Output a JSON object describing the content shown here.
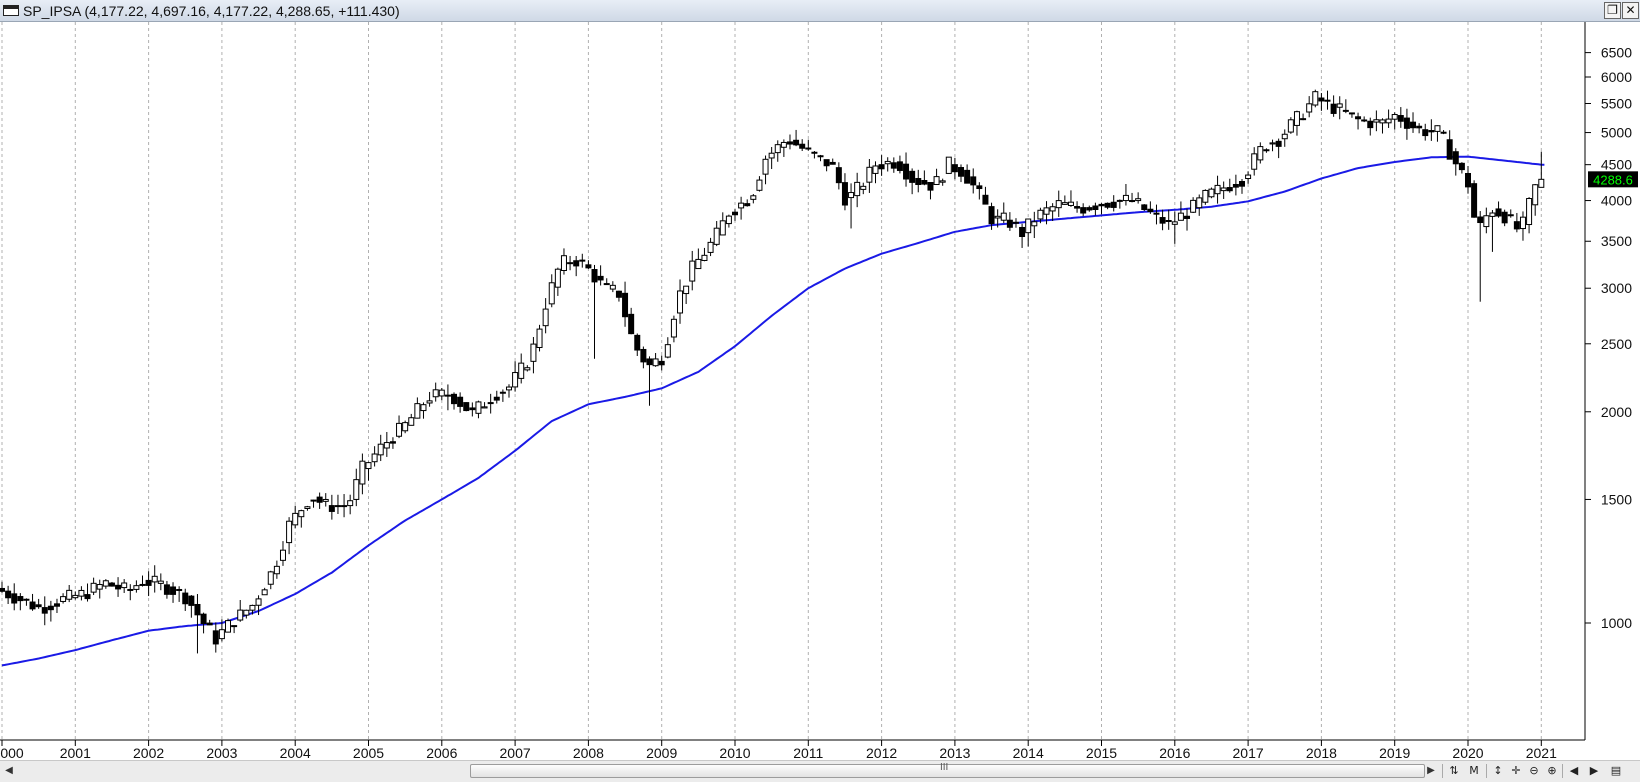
{
  "window": {
    "title": "SP_IPSA (4,177.22, 4,697.16, 4,177.22, 4,288.65, +111.430)",
    "restore_icon": "restore-icon",
    "close_icon": "close-icon"
  },
  "scrollbar": {
    "grip": "III"
  },
  "toolbar": {
    "items": [
      "scale-toggle-icon",
      "M",
      "pan-vertical-icon",
      "crosshair-icon",
      "zoom-out-icon",
      "zoom-in-icon",
      "step-left-icon",
      "step-right-icon",
      "panel-icon"
    ],
    "m_label": "M"
  },
  "chart_data": {
    "type": "candlestick",
    "symbol": "SP_IPSA",
    "interval": "monthly",
    "y_scale": "log",
    "ylim": [
      800,
      7000
    ],
    "y_ticks": [
      1000,
      1500,
      2000,
      2500,
      3000,
      3500,
      4000,
      4500,
      5000,
      5500,
      6000,
      6500
    ],
    "x_tick_labels": [
      "000",
      "2001",
      "2002",
      "2003",
      "2004",
      "2005",
      "2006",
      "2007",
      "2008",
      "2009",
      "2010",
      "2011",
      "2012",
      "2013",
      "2014",
      "2015",
      "2016",
      "2017",
      "2018",
      "2019",
      "2020",
      "2021"
    ],
    "last_value_label": "4288.6",
    "grid": "vertical-dashed",
    "last_bar": {
      "open": 4177.22,
      "high": 4697.16,
      "low": 4177.22,
      "close": 4288.65,
      "change": 111.43
    },
    "price_anchors": [
      [
        2000.0,
        1120
      ],
      [
        2000.3,
        1085
      ],
      [
        2000.6,
        1050
      ],
      [
        2000.9,
        1080
      ],
      [
        2001.2,
        1100
      ],
      [
        2001.5,
        1140
      ],
      [
        2001.8,
        1110
      ],
      [
        2002.0,
        1150
      ],
      [
        2002.3,
        1130
      ],
      [
        2002.6,
        1090
      ],
      [
        2002.8,
        1010
      ],
      [
        2003.0,
        950
      ],
      [
        2003.2,
        1000
      ],
      [
        2003.5,
        1060
      ],
      [
        2003.8,
        1200
      ],
      [
        2004.0,
        1380
      ],
      [
        2004.3,
        1520
      ],
      [
        2004.5,
        1470
      ],
      [
        2004.8,
        1470
      ],
      [
        2005.0,
        1660
      ],
      [
        2005.3,
        1800
      ],
      [
        2005.6,
        1920
      ],
      [
        2005.9,
        2100
      ],
      [
        2006.2,
        2120
      ],
      [
        2006.5,
        1990
      ],
      [
        2006.8,
        2120
      ],
      [
        2007.0,
        2170
      ],
      [
        2007.3,
        2400
      ],
      [
        2007.5,
        2850
      ],
      [
        2007.7,
        3250
      ],
      [
        2007.9,
        3300
      ],
      [
        2008.1,
        3180
      ],
      [
        2008.3,
        3000
      ],
      [
        2008.5,
        2950
      ],
      [
        2008.7,
        2500
      ],
      [
        2008.9,
        2320
      ],
      [
        2009.1,
        2400
      ],
      [
        2009.3,
        2900
      ],
      [
        2009.5,
        3200
      ],
      [
        2009.8,
        3520
      ],
      [
        2010.0,
        3850
      ],
      [
        2010.3,
        4050
      ],
      [
        2010.5,
        4600
      ],
      [
        2010.8,
        4900
      ],
      [
        2011.0,
        4750
      ],
      [
        2011.2,
        4600
      ],
      [
        2011.4,
        4500
      ],
      [
        2011.6,
        4000
      ],
      [
        2011.8,
        4200
      ],
      [
        2012.0,
        4500
      ],
      [
        2012.3,
        4550
      ],
      [
        2012.5,
        4300
      ],
      [
        2012.8,
        4200
      ],
      [
        2013.0,
        4500
      ],
      [
        2013.2,
        4400
      ],
      [
        2013.4,
        4100
      ],
      [
        2013.6,
        3750
      ],
      [
        2013.8,
        3750
      ],
      [
        2014.0,
        3600
      ],
      [
        2014.2,
        3800
      ],
      [
        2014.5,
        3950
      ],
      [
        2014.8,
        3900
      ],
      [
        2015.0,
        3950
      ],
      [
        2015.3,
        4000
      ],
      [
        2015.5,
        4000
      ],
      [
        2015.8,
        3800
      ],
      [
        2016.0,
        3700
      ],
      [
        2016.3,
        3880
      ],
      [
        2016.5,
        4050
      ],
      [
        2016.8,
        4200
      ],
      [
        2017.0,
        4300
      ],
      [
        2017.3,
        4800
      ],
      [
        2017.5,
        4900
      ],
      [
        2017.8,
        5300
      ],
      [
        2018.0,
        5600
      ],
      [
        2018.3,
        5400
      ],
      [
        2018.6,
        5200
      ],
      [
        2018.9,
        5150
      ],
      [
        2019.1,
        5300
      ],
      [
        2019.4,
        5050
      ],
      [
        2019.7,
        5000
      ],
      [
        2019.9,
        4550
      ],
      [
        2020.1,
        4200
      ],
      [
        2020.2,
        3600
      ],
      [
        2020.4,
        3900
      ],
      [
        2020.6,
        3800
      ],
      [
        2020.8,
        3600
      ],
      [
        2020.9,
        3900
      ],
      [
        2021.0,
        4177
      ],
      [
        2021.05,
        4288
      ]
    ],
    "ma_anchors": [
      [
        2000.0,
        870
      ],
      [
        2000.5,
        890
      ],
      [
        2001.0,
        915
      ],
      [
        2001.5,
        945
      ],
      [
        2002.0,
        975
      ],
      [
        2002.5,
        990
      ],
      [
        2003.0,
        1000
      ],
      [
        2003.5,
        1040
      ],
      [
        2004.0,
        1100
      ],
      [
        2004.5,
        1180
      ],
      [
        2005.0,
        1290
      ],
      [
        2005.5,
        1400
      ],
      [
        2006.0,
        1500
      ],
      [
        2006.5,
        1610
      ],
      [
        2007.0,
        1760
      ],
      [
        2007.5,
        1940
      ],
      [
        2008.0,
        2050
      ],
      [
        2008.5,
        2100
      ],
      [
        2009.0,
        2160
      ],
      [
        2009.5,
        2280
      ],
      [
        2010.0,
        2480
      ],
      [
        2010.5,
        2740
      ],
      [
        2011.0,
        3000
      ],
      [
        2011.5,
        3200
      ],
      [
        2012.0,
        3360
      ],
      [
        2012.5,
        3480
      ],
      [
        2013.0,
        3610
      ],
      [
        2013.5,
        3690
      ],
      [
        2014.0,
        3730
      ],
      [
        2014.5,
        3770
      ],
      [
        2015.0,
        3810
      ],
      [
        2015.5,
        3850
      ],
      [
        2016.0,
        3880
      ],
      [
        2016.5,
        3920
      ],
      [
        2017.0,
        3990
      ],
      [
        2017.5,
        4120
      ],
      [
        2018.0,
        4300
      ],
      [
        2018.5,
        4450
      ],
      [
        2019.0,
        4540
      ],
      [
        2019.5,
        4610
      ],
      [
        2020.0,
        4620
      ],
      [
        2020.5,
        4560
      ],
      [
        2021.0,
        4500
      ],
      [
        2021.05,
        4500
      ]
    ],
    "spikes": [
      [
        2002.7,
        905
      ],
      [
        2006.1,
        2010
      ],
      [
        2007.6,
        3050
      ],
      [
        2008.1,
        2380
      ],
      [
        2008.8,
        2040
      ],
      [
        2011.6,
        3650
      ],
      [
        2014.0,
        3440
      ],
      [
        2016.0,
        3470
      ],
      [
        2020.2,
        2870
      ],
      [
        2020.3,
        3380
      ],
      [
        2021.0,
        4697
      ]
    ]
  }
}
